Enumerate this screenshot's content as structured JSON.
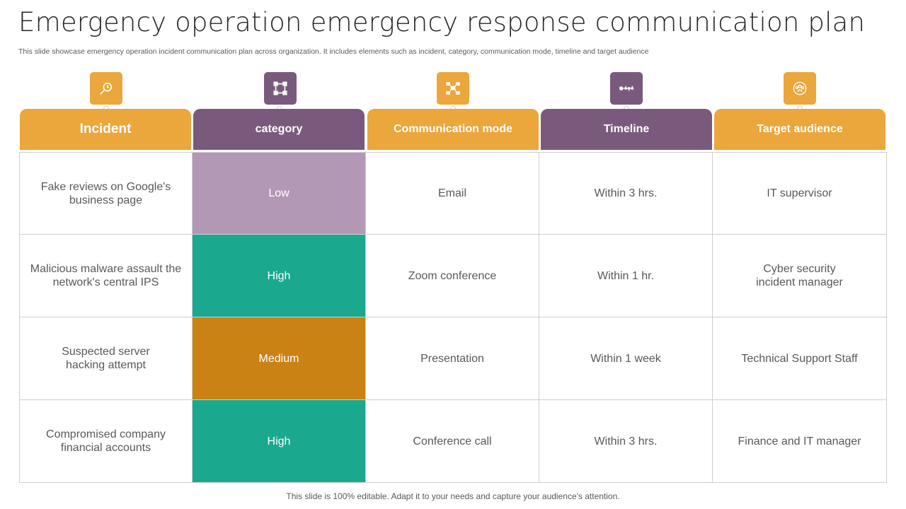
{
  "title": "Emergency operation emergency response communication plan",
  "subtitle": "This slide showcase emergency operation incident communication plan across organization. It includes elements such as incident, category, communication mode, timeline and target audience",
  "colors": {
    "orange": "#eba63c",
    "purple": "#7a5a7c",
    "low": "#b398b6",
    "high": "#1aa88f",
    "medium": "#cb8214"
  },
  "columns": [
    {
      "label": "Incident",
      "icon": "magnifier-icon",
      "color": "orange"
    },
    {
      "label": "category",
      "icon": "frame-icon",
      "color": "purple"
    },
    {
      "label": "Communication mode",
      "icon": "network-icon",
      "color": "orange"
    },
    {
      "label": "Timeline",
      "icon": "timeline-icon",
      "color": "purple"
    },
    {
      "label": "Target audience",
      "icon": "audience-icon",
      "color": "orange"
    }
  ],
  "rows": [
    {
      "incident": "Fake reviews on Google's business page",
      "category": "Low",
      "mode": "Email",
      "timeline": "Within 3 hrs.",
      "audience": "IT supervisor"
    },
    {
      "incident": "Malicious malware assault the network's central IPS",
      "category": "High",
      "mode": "Zoom conference",
      "timeline": "Within 1 hr.",
      "audience": "Cyber security incident manager"
    },
    {
      "incident": "Suspected server hacking attempt",
      "category": "Medium",
      "mode": "Presentation",
      "timeline": "Within 1 week",
      "audience": "Technical Support Staff"
    },
    {
      "incident": "Compromised company financial accounts",
      "category": "High",
      "mode": "Conference call",
      "timeline": "Within 3 hrs.",
      "audience": "Finance and IT manager"
    }
  ],
  "footer": "This slide is 100% editable. Adapt it to your needs and capture your audience's attention."
}
